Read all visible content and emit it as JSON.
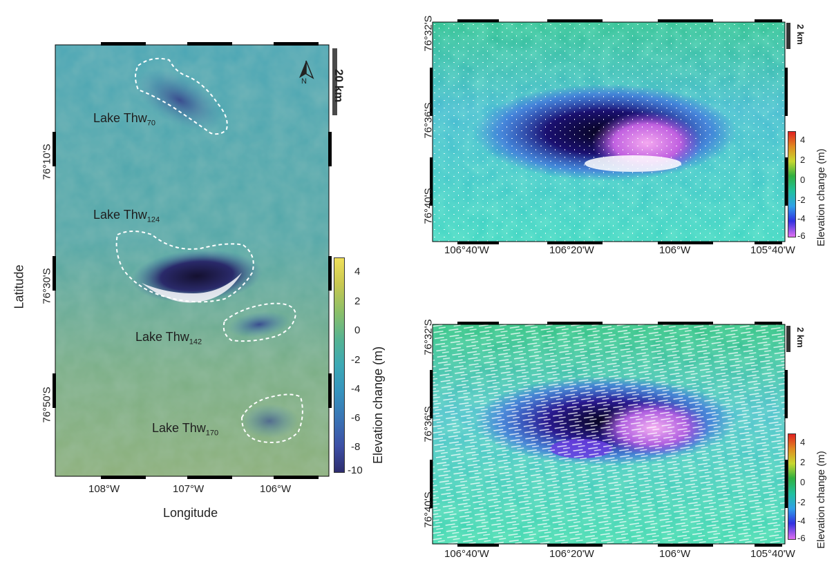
{
  "left_map": {
    "xlabel": "Longitude",
    "ylabel": "Latitude",
    "x_ticks": [
      "108°W",
      "107°W",
      "106°W"
    ],
    "y_ticks": [
      "76°10'S",
      "76°30'S",
      "76°50'S"
    ],
    "scale_bar": "20 km",
    "north_label": "N",
    "lakes": [
      {
        "name": "Lake Thw",
        "sub": "70"
      },
      {
        "name": "Lake Thw",
        "sub": "124"
      },
      {
        "name": "Lake Thw",
        "sub": "142"
      },
      {
        "name": "Lake Thw",
        "sub": "170"
      }
    ],
    "colorbar": {
      "title": "Elevation change (m)",
      "ticks": [
        "4",
        "2",
        "0",
        "-2",
        "-4",
        "-6",
        "-8",
        "-10"
      ]
    }
  },
  "right_top_map": {
    "x_ticks": [
      "106°40'W",
      "106°20'W",
      "106°W",
      "105°40'W"
    ],
    "y_ticks": [
      "76°32'S",
      "76°36'S",
      "76°40'S"
    ],
    "scale_bar": "2 km",
    "colorbar": {
      "title": "Elevation change (m)",
      "ticks": [
        "4",
        "2",
        "0",
        "-2",
        "-4",
        "-6"
      ]
    }
  },
  "right_bottom_map": {
    "x_ticks": [
      "106°40'W",
      "106°20'W",
      "106°W",
      "105°40'W"
    ],
    "y_ticks": [
      "76°32'S",
      "76°36'S",
      "76°40'S"
    ],
    "scale_bar": "2 km",
    "colorbar": {
      "title": "Elevation change (m)",
      "ticks": [
        "4",
        "2",
        "0",
        "-2",
        "-4",
        "-6"
      ]
    }
  }
}
